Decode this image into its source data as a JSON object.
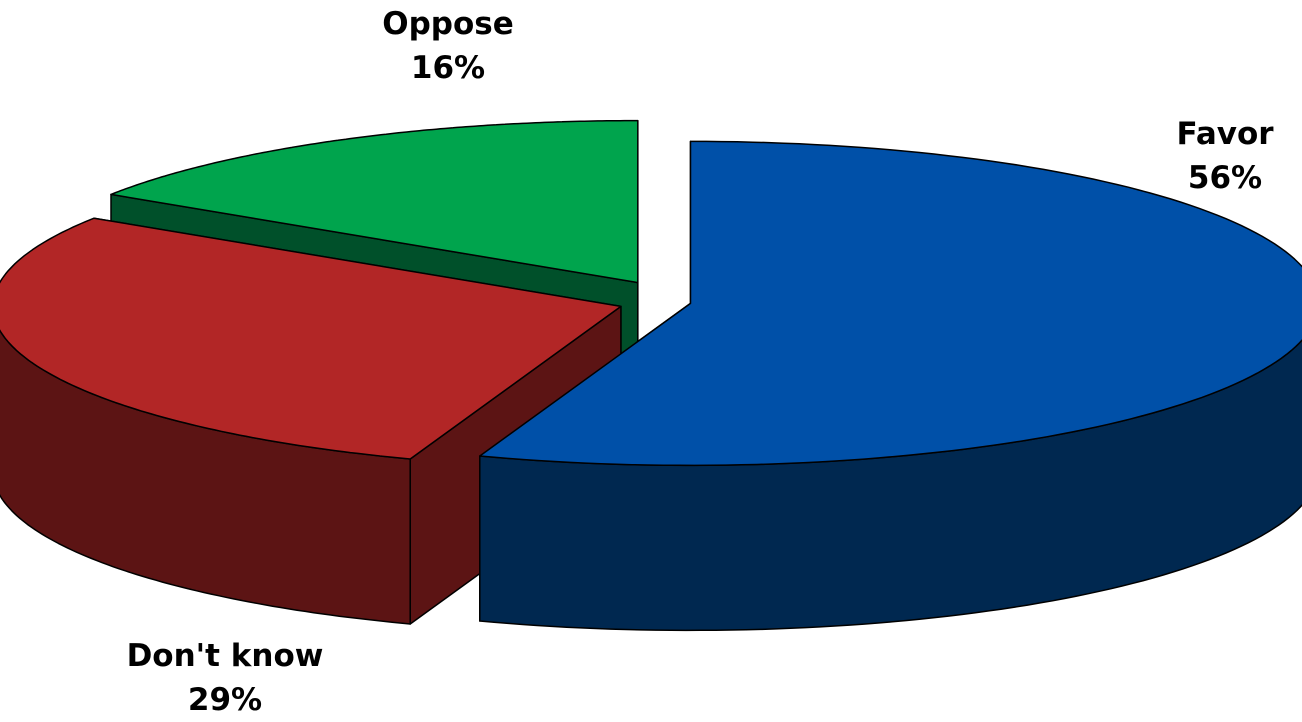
{
  "chart_data": {
    "type": "pie",
    "style": "3d-exploded",
    "slices": [
      {
        "label": "Favor",
        "value": 56,
        "display": "56%",
        "color": "#0050A8",
        "side_color": "#002850"
      },
      {
        "label": "Don't know",
        "value": 29,
        "display": "29%",
        "color": "#B22626",
        "side_color": "#5C1414"
      },
      {
        "label": "Oppose",
        "value": 16,
        "display": "16%",
        "color": "#00A44D",
        "side_color": "#00502A"
      }
    ]
  }
}
